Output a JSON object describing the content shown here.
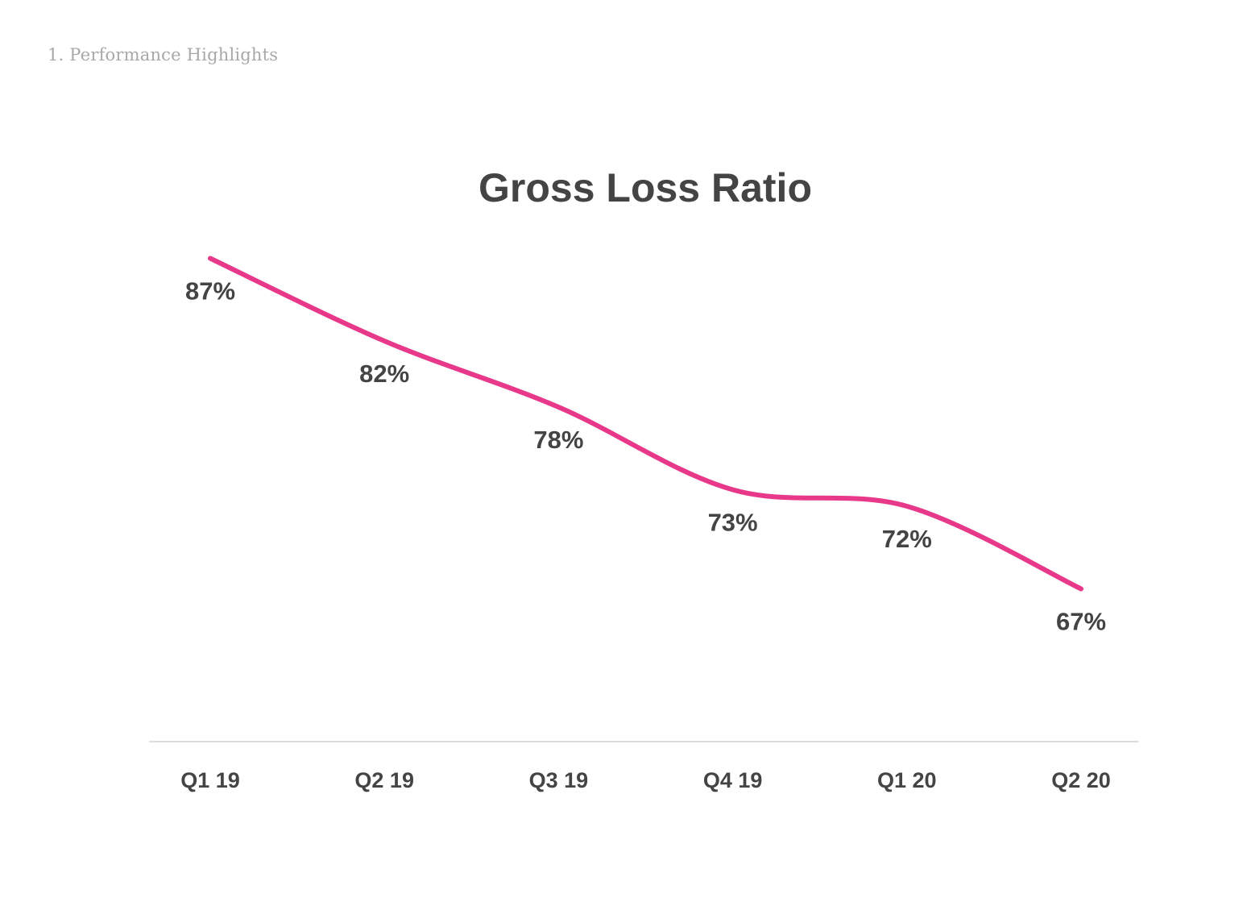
{
  "header": {
    "section_label": "1. Performance Highlights"
  },
  "chart_data": {
    "type": "line",
    "title": "Gross Loss Ratio",
    "xlabel": "",
    "ylabel": "",
    "categories": [
      "Q1 19",
      "Q2 19",
      "Q3 19",
      "Q4 19",
      "Q1 20",
      "Q2 20"
    ],
    "series": [
      {
        "name": "Gross Loss Ratio",
        "values": [
          87,
          82,
          78,
          73,
          72,
          67
        ],
        "labels": [
          "87%",
          "82%",
          "78%",
          "73%",
          "72%",
          "67%"
        ],
        "color": "#e8388a"
      }
    ],
    "ylim": [
      52,
      92
    ],
    "grid": false,
    "legend": "none",
    "axis_color": "#dcdcdc",
    "text_color": "#444444"
  }
}
